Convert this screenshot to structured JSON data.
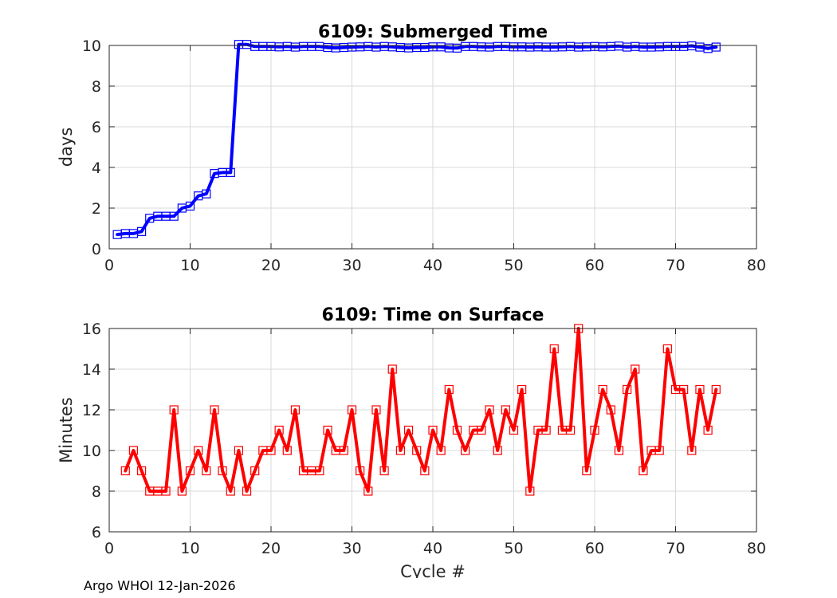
{
  "footer": "Argo WHOI 12-Jan-2026",
  "chart_data": [
    {
      "type": "line",
      "title": "6109: Submerged Time",
      "xlabel": "",
      "ylabel": "days",
      "xlim": [
        0,
        80
      ],
      "ylim": [
        0,
        10
      ],
      "xticks": [
        0,
        10,
        20,
        30,
        40,
        50,
        60,
        70,
        80
      ],
      "yticks": [
        0,
        2,
        4,
        6,
        8,
        10
      ],
      "xticklabels": [
        "0",
        "10",
        "20",
        "30",
        "40",
        "50",
        "60",
        "70",
        "80"
      ],
      "yticklabels": [
        "0",
        "2",
        "4",
        "6",
        "8",
        "10"
      ],
      "grid": true,
      "color": "#0000ff",
      "marker": "square",
      "x": [
        1,
        2,
        3,
        4,
        5,
        6,
        7,
        8,
        9,
        10,
        11,
        12,
        13,
        14,
        15,
        16,
        17,
        18,
        19,
        20,
        21,
        22,
        23,
        24,
        25,
        26,
        27,
        28,
        29,
        30,
        31,
        32,
        33,
        34,
        35,
        36,
        37,
        38,
        39,
        40,
        41,
        42,
        43,
        44,
        45,
        46,
        47,
        48,
        49,
        50,
        51,
        52,
        53,
        54,
        55,
        56,
        57,
        58,
        59,
        60,
        61,
        62,
        63,
        64,
        65,
        66,
        67,
        68,
        69,
        70,
        71,
        72,
        73,
        74,
        75
      ],
      "y": [
        0.7,
        0.75,
        0.75,
        0.85,
        1.5,
        1.6,
        1.6,
        1.6,
        2.0,
        2.1,
        2.6,
        2.7,
        3.7,
        3.75,
        3.75,
        10.05,
        10.05,
        9.95,
        9.95,
        9.95,
        9.93,
        9.95,
        9.92,
        9.95,
        9.95,
        9.95,
        9.9,
        9.88,
        9.9,
        9.92,
        9.93,
        9.95,
        9.92,
        9.95,
        9.93,
        9.9,
        9.88,
        9.9,
        9.9,
        9.93,
        9.93,
        9.88,
        9.87,
        9.95,
        9.95,
        9.93,
        9.92,
        9.95,
        9.95,
        9.93,
        9.93,
        9.92,
        9.93,
        9.92,
        9.92,
        9.93,
        9.95,
        9.92,
        9.93,
        9.95,
        9.93,
        9.95,
        9.97,
        9.92,
        9.95,
        9.92,
        9.92,
        9.93,
        9.95,
        9.95,
        9.95,
        9.98,
        9.92,
        9.85,
        9.92
      ]
    },
    {
      "type": "line",
      "title": "6109: Time on Surface",
      "xlabel": "Cycle #",
      "ylabel": "Minutes",
      "xlim": [
        0,
        80
      ],
      "ylim": [
        6,
        16
      ],
      "xticks": [
        0,
        10,
        20,
        30,
        40,
        50,
        60,
        70,
        80
      ],
      "yticks": [
        6,
        8,
        10,
        12,
        14,
        16
      ],
      "xticklabels": [
        "0",
        "10",
        "20",
        "30",
        "40",
        "50",
        "60",
        "70",
        "80"
      ],
      "yticklabels": [
        "6",
        "8",
        "10",
        "12",
        "14",
        "16"
      ],
      "grid": true,
      "color": "#ff0000",
      "marker": "square",
      "x": [
        2,
        3,
        4,
        5,
        6,
        7,
        8,
        9,
        10,
        11,
        12,
        13,
        14,
        15,
        16,
        17,
        18,
        19,
        20,
        21,
        22,
        23,
        24,
        25,
        26,
        27,
        28,
        29,
        30,
        31,
        32,
        33,
        34,
        35,
        36,
        37,
        38,
        39,
        40,
        41,
        42,
        43,
        44,
        45,
        46,
        47,
        48,
        49,
        50,
        51,
        52,
        53,
        54,
        55,
        56,
        57,
        58,
        59,
        60,
        61,
        62,
        63,
        64,
        65,
        66,
        67,
        68,
        69,
        70,
        71,
        72,
        73,
        74,
        75
      ],
      "y": [
        9,
        10,
        9,
        8,
        8,
        8,
        12,
        8,
        9,
        10,
        9,
        12,
        9,
        8,
        10,
        8,
        9,
        10,
        10,
        11,
        10,
        12,
        9,
        9,
        9,
        11,
        10,
        10,
        12,
        9,
        8,
        12,
        9,
        14,
        10,
        11,
        10,
        9,
        11,
        10,
        13,
        11,
        10,
        11,
        11,
        12,
        10,
        12,
        11,
        13,
        8,
        11,
        11,
        15,
        11,
        11,
        16,
        9,
        11,
        13,
        12,
        10,
        13,
        14,
        9,
        10,
        10,
        15,
        13,
        13,
        10,
        13,
        11,
        13
      ]
    }
  ]
}
